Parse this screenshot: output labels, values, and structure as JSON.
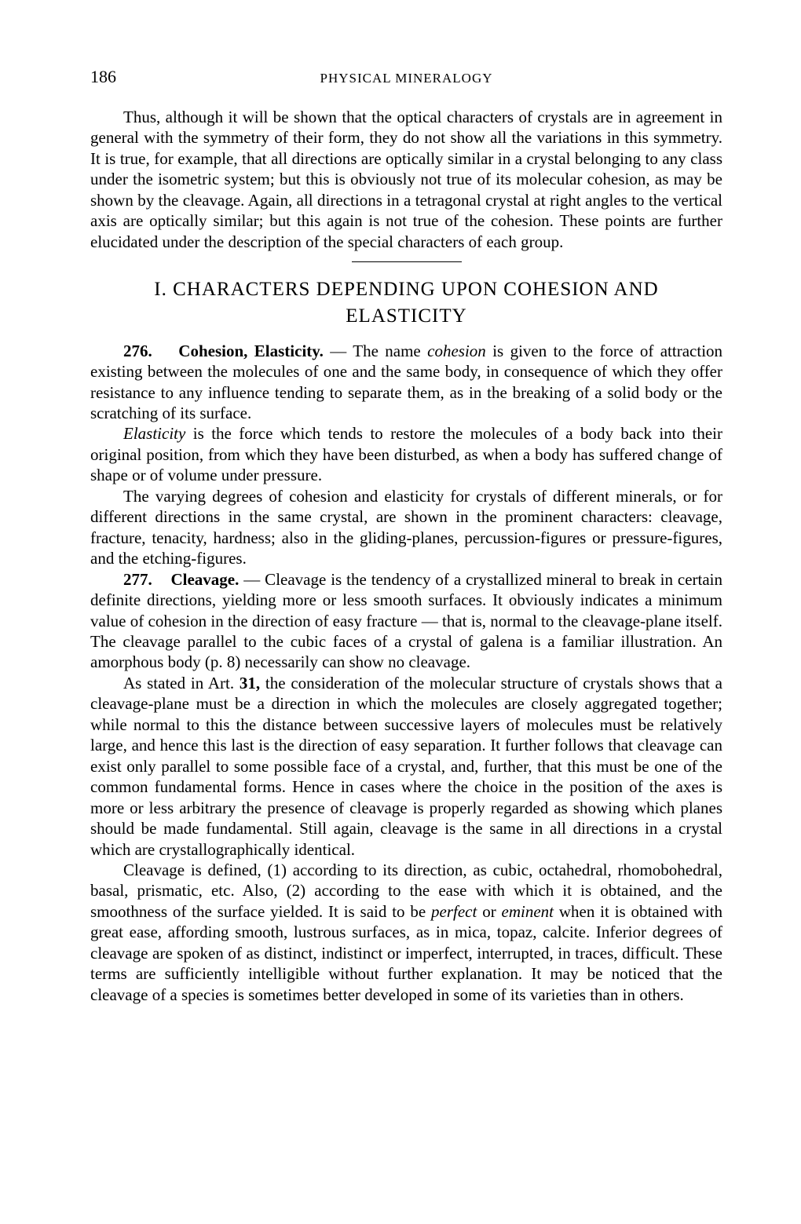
{
  "header": {
    "page_number": "186",
    "running_head": "PHYSICAL MINERALOGY"
  },
  "intro_para": "Thus, although it will be shown that the optical characters of crystals are in agreement in general with the symmetry of their form, they do not show all the variations in this symmetry.   It is true, for example, that all directions are optically similar in a crystal belonging to any class under the isometric system; but this is obviously not true of its molecular cohesion, as may be shown by the cleavage.   Again, all directions in a tetragonal crystal at right angles to the vertical axis are optically similar; but this again is not true of the cohesion.   These points are further elucidated under the description of the special characters of each group.",
  "section": {
    "number": "I.",
    "title_line1": "CHARACTERS DEPENDING UPON COHESION AND",
    "title_line2": "ELASTICITY"
  },
  "entry_276": {
    "num": "276.",
    "title": "Cohesion, Elasticity.",
    "lead_dash": " — The name ",
    "italic1": "cohesion",
    "rest1": " is given to the force of attraction existing between the molecules of one and the same body, in consequence of which they offer resistance to any influence tending to separate them, as in the breaking of a solid body or the scratching of its surface."
  },
  "elasticity_para": {
    "italic": "Elasticity",
    "rest": " is the force which tends to restore the molecules of a body back into their original position, from which they have been disturbed, as when a body has suffered change of shape or of volume under pressure."
  },
  "varying_para": "The varying degrees of cohesion and elasticity for crystals of different minerals, or for different directions in the same crystal, are shown in the prominent characters: cleavage, fracture, tenacity, hardness; also in the gliding-planes, percussion-figures or pressure-figures, and the etching-figures.",
  "entry_277": {
    "num": "277.",
    "title": "Cleavage.",
    "rest": " — Cleavage is the tendency of a crystallized mineral to break in certain definite directions, yielding more or less smooth surfaces. It obviously indicates a minimum value of cohesion in the direction of easy fracture — that is, normal to the cleavage-plane itself.   The cleavage parallel to the cubic faces of a crystal of galena is a familiar illustration.   An amorphous body (p. 8) necessarily can show no cleavage."
  },
  "art31_para": {
    "lead": "As stated in Art. ",
    "bold": "31,",
    "rest": " the consideration of the molecular structure of crystals shows that a cleavage-plane must be a direction in which the molecules are closely aggregated together; while normal to this the distance between successive layers of molecules must be relatively large, and hence this last is the direction of easy separation.   It further follows that cleavage can exist only parallel to some possible face of a crystal, and, further, that this must be one of the common fundamental forms.   Hence in cases where the choice in the position of the axes is more or less arbitrary the presence of cleavage is properly regarded as showing which planes should be made fundamental.   Still again, cleavage is the same in all directions in a crystal which are crystallographically identical."
  },
  "cleavage_defined": {
    "part1": "Cleavage is defined, (1) according to its direction, as cubic, octahedral, rhomobohedral, basal, prismatic, etc.   Also, (2) according to the ease with which it is obtained, and the smoothness of the surface yielded.   It is said to be ",
    "italic1": "perfect",
    "mid": " or ",
    "italic2": "eminent",
    "part2": " when it is obtained with great ease, affording smooth, lustrous surfaces, as in mica, topaz, calcite.   Inferior degrees of cleavage are spoken of as distinct, indistinct or imperfect, interrupted, in traces, difficult. These terms are sufficiently intelligible without further explanation.   It may be noticed that the cleavage of a species is sometimes better developed in some of its varieties than in others."
  }
}
